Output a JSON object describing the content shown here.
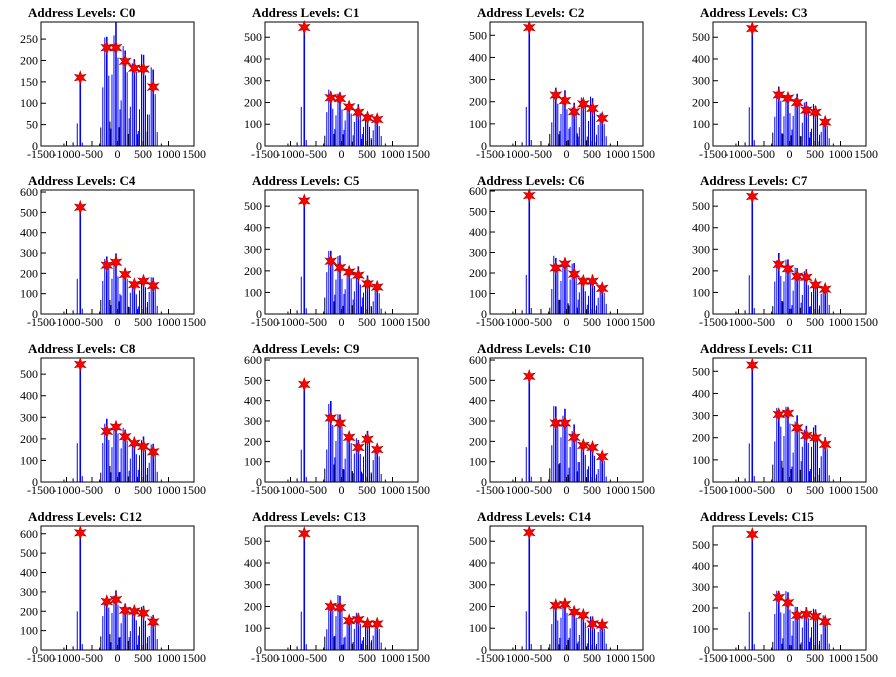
{
  "chart_data": [
    {
      "type": "bar",
      "title": "Address Levels: C0",
      "xlim": [
        -1500,
        1500
      ],
      "ylim": [
        0,
        290
      ],
      "yticks": [
        0,
        50,
        100,
        150,
        200,
        250
      ],
      "xticks": [
        -1500,
        -1000,
        -500,
        0,
        500,
        1000,
        1500
      ],
      "peaks_x": [
        -730,
        -210,
        -30,
        150,
        330,
        510,
        700
      ],
      "peaks_y": [
        160,
        230,
        230,
        198,
        182,
        180,
        138
      ],
      "colors": {
        "bars": "#0000ff",
        "markers": "#ff0000"
      }
    },
    {
      "type": "bar",
      "title": "Address Levels: C1",
      "xlim": [
        -1500,
        1500
      ],
      "ylim": [
        0,
        570
      ],
      "yticks": [
        0,
        100,
        200,
        300,
        400,
        500
      ],
      "xticks": [
        -1500,
        -1000,
        -500,
        0,
        500,
        1000,
        1500
      ],
      "peaks_x": [
        -730,
        -210,
        -30,
        150,
        330,
        510,
        700
      ],
      "peaks_y": [
        545,
        222,
        218,
        180,
        155,
        130,
        122
      ],
      "colors": {
        "bars": "#0000ff",
        "markers": "#ff0000"
      }
    },
    {
      "type": "bar",
      "title": "Address Levels: C2",
      "xlim": [
        -1500,
        1500
      ],
      "ylim": [
        0,
        560
      ],
      "yticks": [
        0,
        100,
        200,
        300,
        400,
        500
      ],
      "xticks": [
        -1500,
        -1000,
        -500,
        0,
        500,
        1000,
        1500
      ],
      "peaks_x": [
        -730,
        -210,
        -30,
        150,
        330,
        510,
        700
      ],
      "peaks_y": [
        535,
        230,
        205,
        155,
        190,
        170,
        125
      ],
      "colors": {
        "bars": "#0000ff",
        "markers": "#ff0000"
      }
    },
    {
      "type": "bar",
      "title": "Address Levels: C3",
      "xlim": [
        -1500,
        1500
      ],
      "ylim": [
        0,
        570
      ],
      "yticks": [
        0,
        100,
        200,
        300,
        400,
        500
      ],
      "xticks": [
        -1500,
        -1000,
        -500,
        0,
        500,
        1000,
        1500
      ],
      "peaks_x": [
        -730,
        -210,
        -30,
        150,
        330,
        510,
        700
      ],
      "peaks_y": [
        540,
        235,
        220,
        200,
        165,
        155,
        110
      ],
      "colors": {
        "bars": "#0000ff",
        "markers": "#ff0000"
      }
    },
    {
      "type": "bar",
      "title": "Address Levels: C4",
      "xlim": [
        -1500,
        1500
      ],
      "ylim": [
        0,
        610
      ],
      "yticks": [
        0,
        100,
        200,
        300,
        400,
        500,
        600
      ],
      "xticks": [
        -1500,
        -1000,
        -500,
        0,
        500,
        1000,
        1500
      ],
      "peaks_x": [
        -730,
        -210,
        -30,
        150,
        330,
        510,
        700
      ],
      "peaks_y": [
        525,
        240,
        255,
        195,
        145,
        162,
        140
      ],
      "colors": {
        "bars": "#0000ff",
        "markers": "#ff0000"
      }
    },
    {
      "type": "bar",
      "title": "Address Levels: C5",
      "xlim": [
        -1500,
        1500
      ],
      "ylim": [
        0,
        575
      ],
      "yticks": [
        0,
        100,
        200,
        300,
        400,
        500
      ],
      "xticks": [
        -1500,
        -1000,
        -500,
        0,
        500,
        1000,
        1500
      ],
      "peaks_x": [
        -730,
        -210,
        -30,
        150,
        330,
        510,
        700
      ],
      "peaks_y": [
        525,
        245,
        215,
        195,
        180,
        140,
        125
      ],
      "colors": {
        "bars": "#0000ff",
        "markers": "#ff0000"
      }
    },
    {
      "type": "bar",
      "title": "Address Levels: C6",
      "xlim": [
        -1500,
        1500
      ],
      "ylim": [
        0,
        605
      ],
      "yticks": [
        0,
        100,
        200,
        300,
        400,
        500,
        600
      ],
      "xticks": [
        -1500,
        -1000,
        -500,
        0,
        500,
        1000,
        1500
      ],
      "peaks_x": [
        -730,
        -210,
        -30,
        150,
        330,
        510,
        700
      ],
      "peaks_y": [
        578,
        225,
        245,
        195,
        160,
        160,
        125
      ],
      "colors": {
        "bars": "#0000ff",
        "markers": "#ff0000"
      }
    },
    {
      "type": "bar",
      "title": "Address Levels: C7",
      "xlim": [
        -1500,
        1500
      ],
      "ylim": [
        0,
        575
      ],
      "yticks": [
        0,
        100,
        200,
        300,
        400,
        500
      ],
      "xticks": [
        -1500,
        -1000,
        -500,
        0,
        500,
        1000,
        1500
      ],
      "peaks_x": [
        -730,
        -210,
        -30,
        150,
        330,
        510,
        700
      ],
      "peaks_y": [
        545,
        230,
        210,
        175,
        170,
        135,
        115
      ],
      "colors": {
        "bars": "#0000ff",
        "markers": "#ff0000"
      }
    },
    {
      "type": "bar",
      "title": "Address Levels: C8",
      "xlim": [
        -1500,
        1500
      ],
      "ylim": [
        0,
        575
      ],
      "yticks": [
        0,
        100,
        200,
        300,
        400,
        500
      ],
      "xticks": [
        -1500,
        -1000,
        -500,
        0,
        500,
        1000,
        1500
      ],
      "peaks_x": [
        -730,
        -210,
        -30,
        150,
        330,
        510,
        700
      ],
      "peaks_y": [
        545,
        235,
        255,
        210,
        180,
        165,
        140
      ],
      "colors": {
        "bars": "#0000ff",
        "markers": "#ff0000"
      }
    },
    {
      "type": "bar",
      "title": "Address Levels: C9",
      "xlim": [
        -1500,
        1500
      ],
      "ylim": [
        0,
        610
      ],
      "yticks": [
        0,
        100,
        200,
        300,
        400,
        500,
        600
      ],
      "xticks": [
        -1500,
        -1000,
        -500,
        0,
        500,
        1000,
        1500
      ],
      "peaks_x": [
        -730,
        -210,
        -30,
        150,
        330,
        510,
        700
      ],
      "peaks_y": [
        480,
        315,
        290,
        220,
        170,
        210,
        160
      ],
      "colors": {
        "bars": "#0000ff",
        "markers": "#ff0000"
      }
    },
    {
      "type": "bar",
      "title": "Address Levels: C10",
      "xlim": [
        -1500,
        1500
      ],
      "ylim": [
        0,
        610
      ],
      "yticks": [
        0,
        100,
        200,
        300,
        400,
        500,
        600
      ],
      "xticks": [
        -1500,
        -1000,
        -500,
        0,
        500,
        1000,
        1500
      ],
      "peaks_x": [
        -730,
        -210,
        -30,
        150,
        330,
        510,
        700
      ],
      "peaks_y": [
        520,
        290,
        290,
        220,
        180,
        170,
        125
      ],
      "colors": {
        "bars": "#0000ff",
        "markers": "#ff0000"
      }
    },
    {
      "type": "bar",
      "title": "Address Levels: C11",
      "xlim": [
        -1500,
        1500
      ],
      "ylim": [
        0,
        560
      ],
      "yticks": [
        0,
        100,
        200,
        300,
        400,
        500
      ],
      "xticks": [
        -1500,
        -1000,
        -500,
        0,
        500,
        1000,
        1500
      ],
      "peaks_x": [
        -730,
        -210,
        -30,
        150,
        330,
        510,
        700
      ],
      "peaks_y": [
        528,
        305,
        310,
        245,
        210,
        200,
        170
      ],
      "colors": {
        "bars": "#0000ff",
        "markers": "#ff0000"
      }
    },
    {
      "type": "bar",
      "title": "Address Levels: C12",
      "xlim": [
        -1500,
        1500
      ],
      "ylim": [
        0,
        640
      ],
      "yticks": [
        0,
        100,
        200,
        300,
        400,
        500,
        600
      ],
      "xticks": [
        -1500,
        -1000,
        -500,
        0,
        500,
        1000,
        1500
      ],
      "peaks_x": [
        -730,
        -210,
        -30,
        150,
        330,
        510,
        700
      ],
      "peaks_y": [
        605,
        250,
        260,
        205,
        200,
        190,
        145
      ],
      "colors": {
        "bars": "#0000ff",
        "markers": "#ff0000"
      }
    },
    {
      "type": "bar",
      "title": "Address Levels: C13",
      "xlim": [
        -1500,
        1500
      ],
      "ylim": [
        0,
        570
      ],
      "yticks": [
        0,
        100,
        200,
        300,
        400,
        500
      ],
      "xticks": [
        -1500,
        -1000,
        -500,
        0,
        500,
        1000,
        1500
      ],
      "peaks_x": [
        -730,
        -210,
        -30,
        150,
        330,
        510,
        700
      ],
      "peaks_y": [
        535,
        200,
        195,
        135,
        140,
        120,
        120
      ],
      "colors": {
        "bars": "#0000ff",
        "markers": "#ff0000"
      }
    },
    {
      "type": "bar",
      "title": "Address Levels: C14",
      "xlim": [
        -1500,
        1500
      ],
      "ylim": [
        0,
        570
      ],
      "yticks": [
        0,
        100,
        200,
        300,
        400,
        500
      ],
      "xticks": [
        -1500,
        -1000,
        -500,
        0,
        500,
        1000,
        1500
      ],
      "peaks_x": [
        -730,
        -210,
        -30,
        150,
        330,
        510,
        700
      ],
      "peaks_y": [
        540,
        205,
        210,
        175,
        160,
        120,
        115
      ],
      "colors": {
        "bars": "#0000ff",
        "markers": "#ff0000"
      }
    },
    {
      "type": "bar",
      "title": "Address Levels: C15",
      "xlim": [
        -1500,
        1500
      ],
      "ylim": [
        0,
        590
      ],
      "yticks": [
        0,
        100,
        200,
        300,
        400,
        500
      ],
      "xticks": [
        -1500,
        -1000,
        -500,
        0,
        500,
        1000,
        1500
      ],
      "peaks_x": [
        -730,
        -210,
        -30,
        150,
        330,
        510,
        700
      ],
      "peaks_y": [
        550,
        250,
        225,
        165,
        170,
        160,
        135
      ],
      "colors": {
        "bars": "#0000ff",
        "markers": "#ff0000"
      }
    }
  ]
}
